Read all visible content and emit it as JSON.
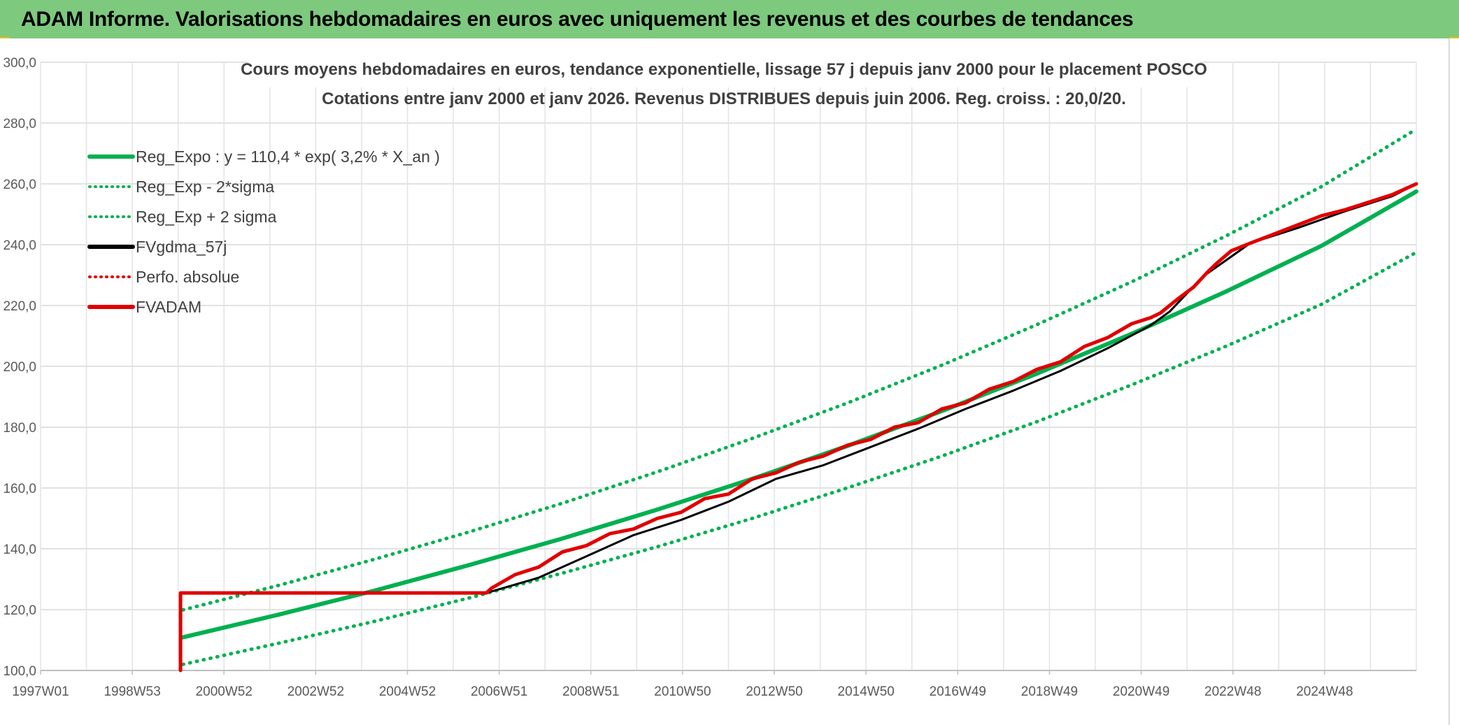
{
  "banner": {
    "title": "ADAM Informe. Valorisations hebdomadaires en euros avec uniquement les revenus et des courbes de tendances"
  },
  "chart_data": {
    "type": "line",
    "title": "Cours moyens hebdomadaires en euros, tendance exponentielle, lissage 57 j depuis janv 2000 pour le placement POSCO",
    "subtitle": "Cotations entre janv 2000 et janv 2026. Revenus DISTRIBUES depuis juin 2006. Reg. croiss. : 20,0/20.",
    "xlabel": "",
    "ylabel": "",
    "x_ticks": [
      "1997W01",
      "1998W53",
      "2000W52",
      "2002W52",
      "2004W52",
      "2006W51",
      "2008W51",
      "2010W50",
      "2012W50",
      "2014W50",
      "2016W49",
      "2018W49",
      "2020W49",
      "2022W48",
      "2024W48"
    ],
    "x_range": [
      1997.0,
      2026.0
    ],
    "y_ticks": [
      "100,0",
      "120,0",
      "140,0",
      "160,0",
      "180,0",
      "200,0",
      "220,0",
      "240,0",
      "260,0",
      "280,0",
      "300,0"
    ],
    "ylim": [
      100,
      300
    ],
    "grid": true,
    "legend_position": "top-left",
    "series": [
      {
        "name": "Reg_Expo : y = 110,4 * exp( 3,2% *  X_an )",
        "color": "#00b050",
        "style": "solid",
        "x": [
          2000.0,
          2002.0,
          2004.0,
          2006.0,
          2008.0,
          2010.0,
          2012.0,
          2014.0,
          2016.0,
          2018.0,
          2020.0,
          2022.0,
          2024.0,
          2026.0
        ],
        "y": [
          110.9,
          118.3,
          126.1,
          134.5,
          143.4,
          152.9,
          163.0,
          173.8,
          185.3,
          197.6,
          210.7,
          224.7,
          239.6,
          257.5
        ]
      },
      {
        "name": "Reg_Exp - 2*sigma",
        "color": "#00b050",
        "style": "dotted",
        "x": [
          2000.0,
          2002.0,
          2004.0,
          2006.0,
          2008.0,
          2010.0,
          2012.0,
          2014.0,
          2016.0,
          2018.0,
          2020.0,
          2022.0,
          2024.0,
          2026.0
        ],
        "y": [
          102.0,
          108.9,
          116.0,
          123.7,
          132.0,
          140.7,
          150.0,
          160.0,
          170.5,
          181.8,
          193.9,
          206.7,
          220.4,
          237.5
        ]
      },
      {
        "name": "Reg_Exp + 2 sigma",
        "color": "#00b050",
        "style": "dotted",
        "x": [
          2000.0,
          2002.0,
          2004.0,
          2006.0,
          2008.0,
          2010.0,
          2012.0,
          2014.0,
          2016.0,
          2018.0,
          2020.0,
          2022.0,
          2024.0,
          2026.0
        ],
        "y": [
          119.9,
          127.9,
          136.4,
          145.4,
          155.0,
          165.3,
          176.3,
          187.9,
          200.4,
          213.7,
          227.8,
          243.0,
          259.1,
          278.0
        ]
      },
      {
        "name": "FVgdma_57j",
        "color": "#000000",
        "style": "solid",
        "x": [
          2006.4,
          2007.5,
          2008.5,
          2009.5,
          2010.5,
          2011.5,
          2012.5,
          2013.5,
          2014.5,
          2015.5,
          2016.5,
          2017.5,
          2018.5,
          2019.5,
          2020.4,
          2020.8,
          2021.5,
          2022.5,
          2023.5,
          2024.5,
          2025.5,
          2026.0
        ],
        "y": [
          125.5,
          130.5,
          137.5,
          144.5,
          149.5,
          155.5,
          163.0,
          167.5,
          173.5,
          179.5,
          186.0,
          192.0,
          198.5,
          206.0,
          213.5,
          218.0,
          229.5,
          240.5,
          245.5,
          251.0,
          256.0,
          260.0
        ]
      },
      {
        "name": "Perfo. absolue",
        "color": "#e00000",
        "style": "dotted",
        "x": [],
        "y": []
      },
      {
        "name": "FVADAM",
        "color": "#e00000",
        "style": "solid",
        "x": [
          1999.95,
          1999.95,
          2006.4,
          2006.5,
          2007.0,
          2007.5,
          2008.0,
          2008.5,
          2009.0,
          2009.5,
          2010.0,
          2010.5,
          2011.0,
          2011.5,
          2012.0,
          2012.5,
          2013.0,
          2013.5,
          2014.0,
          2014.5,
          2015.0,
          2015.5,
          2016.0,
          2016.5,
          2017.0,
          2017.5,
          2018.0,
          2018.5,
          2019.0,
          2019.5,
          2020.0,
          2020.4,
          2020.6,
          2020.8,
          2021.0,
          2021.3,
          2021.6,
          2021.8,
          2022.1,
          2022.5,
          2023.0,
          2023.5,
          2024.0,
          2024.5,
          2025.0,
          2025.5,
          2026.0
        ],
        "y": [
          100.0,
          125.5,
          125.5,
          127.0,
          131.5,
          134.0,
          139.0,
          141.0,
          145.0,
          146.5,
          150.0,
          152.0,
          156.5,
          158.0,
          163.0,
          165.0,
          168.5,
          170.5,
          174.0,
          176.0,
          180.0,
          181.5,
          186.0,
          188.0,
          192.5,
          195.0,
          199.0,
          201.5,
          206.5,
          209.5,
          214.0,
          216.0,
          217.5,
          220.0,
          222.5,
          226.0,
          231.0,
          234.0,
          238.0,
          240.5,
          243.5,
          246.5,
          249.5,
          251.5,
          254.0,
          256.5,
          260.0
        ]
      }
    ]
  }
}
